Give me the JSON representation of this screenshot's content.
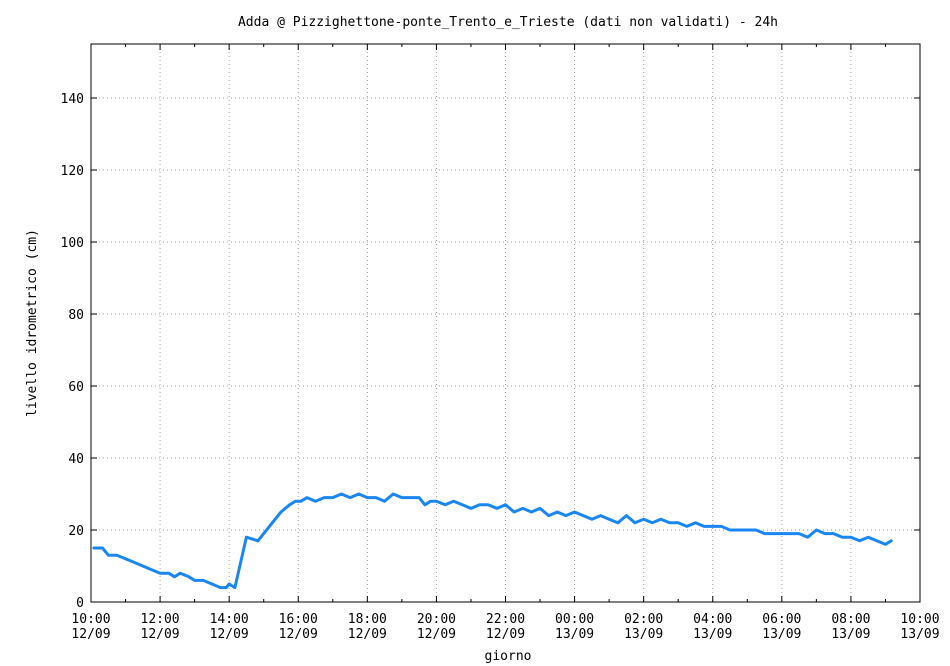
{
  "chart_data": {
    "type": "line",
    "title": "Adda @ Pizzighettone-ponte_Trento_e_Trieste (dati non validati) - 24h",
    "xlabel": "giorno",
    "ylabel": "livello idrometrico (cm)",
    "ylim": [
      0,
      155
    ],
    "yticks": [
      0,
      20,
      40,
      60,
      80,
      100,
      120,
      140
    ],
    "xlim": [
      "12/09 10:00",
      "13/09 10:00"
    ],
    "xticks": [
      {
        "time": "10:00",
        "date": "12/09"
      },
      {
        "time": "12:00",
        "date": "12/09"
      },
      {
        "time": "14:00",
        "date": "12/09"
      },
      {
        "time": "16:00",
        "date": "12/09"
      },
      {
        "time": "18:00",
        "date": "12/09"
      },
      {
        "time": "20:00",
        "date": "12/09"
      },
      {
        "time": "22:00",
        "date": "12/09"
      },
      {
        "time": "00:00",
        "date": "13/09"
      },
      {
        "time": "02:00",
        "date": "13/09"
      },
      {
        "time": "04:00",
        "date": "13/09"
      },
      {
        "time": "06:00",
        "date": "13/09"
      },
      {
        "time": "08:00",
        "date": "13/09"
      },
      {
        "time": "10:00",
        "date": "13/09"
      }
    ],
    "grid": true,
    "series": [
      {
        "color": "#1a86f0",
        "x": [
          "12/09 10:05",
          "12/09 10:20",
          "12/09 10:30",
          "12/09 10:45",
          "12/09 11:00",
          "12/09 11:15",
          "12/09 11:30",
          "12/09 11:45",
          "12/09 12:00",
          "12/09 12:15",
          "12/09 12:25",
          "12/09 12:35",
          "12/09 12:50",
          "12/09 13:00",
          "12/09 13:15",
          "12/09 13:30",
          "12/09 13:45",
          "12/09 13:55",
          "12/09 14:00",
          "12/09 14:10",
          "12/09 14:30",
          "12/09 14:50",
          "12/09 15:00",
          "12/09 15:15",
          "12/09 15:30",
          "12/09 15:45",
          "12/09 15:55",
          "12/09 16:05",
          "12/09 16:15",
          "12/09 16:30",
          "12/09 16:45",
          "12/09 17:00",
          "12/09 17:15",
          "12/09 17:30",
          "12/09 17:45",
          "12/09 18:00",
          "12/09 18:15",
          "12/09 18:30",
          "12/09 18:45",
          "12/09 19:00",
          "12/09 19:15",
          "12/09 19:30",
          "12/09 19:40",
          "12/09 19:50",
          "12/09 20:00",
          "12/09 20:15",
          "12/09 20:30",
          "12/09 20:45",
          "12/09 21:00",
          "12/09 21:15",
          "12/09 21:30",
          "12/09 21:45",
          "12/09 22:00",
          "12/09 22:15",
          "12/09 22:30",
          "12/09 22:45",
          "12/09 23:00",
          "12/09 23:15",
          "12/09 23:30",
          "12/09 23:45",
          "13/09 00:00",
          "13/09 00:15",
          "13/09 00:30",
          "13/09 00:45",
          "13/09 01:00",
          "13/09 01:15",
          "13/09 01:30",
          "13/09 01:45",
          "13/09 02:00",
          "13/09 02:15",
          "13/09 02:30",
          "13/09 02:45",
          "13/09 03:00",
          "13/09 03:15",
          "13/09 03:30",
          "13/09 03:45",
          "13/09 04:00",
          "13/09 04:15",
          "13/09 04:30",
          "13/09 04:45",
          "13/09 05:00",
          "13/09 05:15",
          "13/09 05:30",
          "13/09 05:45",
          "13/09 06:00",
          "13/09 06:15",
          "13/09 06:30",
          "13/09 06:45",
          "13/09 07:00",
          "13/09 07:15",
          "13/09 07:30",
          "13/09 07:45",
          "13/09 08:00",
          "13/09 08:15",
          "13/09 08:30",
          "13/09 08:45",
          "13/09 09:00",
          "13/09 09:10"
        ],
        "y": [
          15,
          15,
          13,
          13,
          12,
          11,
          10,
          9,
          8,
          8,
          7,
          8,
          7,
          6,
          6,
          5,
          4,
          4,
          5,
          4,
          18,
          17,
          19,
          22,
          25,
          27,
          28,
          28,
          29,
          28,
          29,
          29,
          30,
          29,
          30,
          29,
          29,
          28,
          30,
          29,
          29,
          29,
          27,
          28,
          28,
          27,
          28,
          27,
          26,
          27,
          27,
          26,
          27,
          25,
          26,
          25,
          26,
          24,
          25,
          24,
          25,
          24,
          23,
          24,
          23,
          22,
          24,
          22,
          23,
          22,
          23,
          22,
          22,
          21,
          22,
          21,
          21,
          21,
          20,
          20,
          20,
          20,
          19,
          19,
          19,
          19,
          19,
          18,
          20,
          19,
          19,
          18,
          18,
          17,
          18,
          17,
          16,
          17
        ]
      }
    ]
  }
}
